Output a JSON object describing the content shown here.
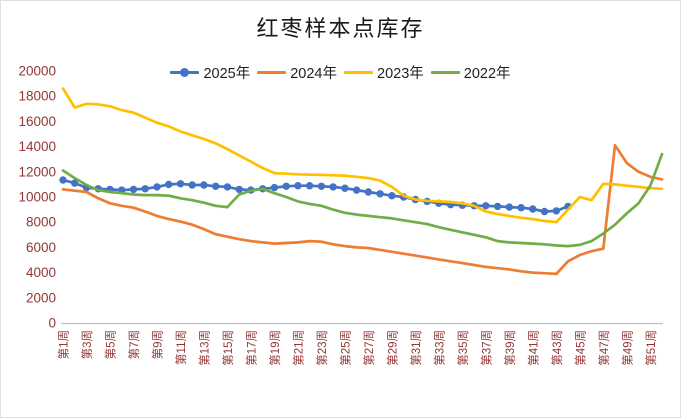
{
  "window": {
    "background": "#ffffff",
    "frame_border_color": "#e0e0e0",
    "axis_line_color": "#bfbfbf"
  },
  "chart_data": {
    "type": "line",
    "title": "红枣样本点库存",
    "legend_position": "top",
    "grid": false,
    "y_axis": {
      "min": 0,
      "max": 20000,
      "step": 2000,
      "tick_labels": [
        "0",
        "2000",
        "4000",
        "6000",
        "8000",
        "10000",
        "12000",
        "14000",
        "16000",
        "18000",
        "20000"
      ],
      "label_color": "#943634"
    },
    "x_axis": {
      "weeks": 52,
      "tick_labels": [
        "第1周",
        "第3周",
        "第5周",
        "第7周",
        "第9周",
        "第11周",
        "第13周",
        "第15周",
        "第17周",
        "第19周",
        "第21周",
        "第23周",
        "第25周",
        "第27周",
        "第29周",
        "第31周",
        "第33周",
        "第35周",
        "第37周",
        "第39周",
        "第41周",
        "第43周",
        "第45周",
        "第47周",
        "第49周",
        "第51周"
      ],
      "tick_step_weeks": 2,
      "tick_label_rotation_deg": -90,
      "label_color": "#943634"
    },
    "series": [
      {
        "name": "2025年",
        "color": "#4472C4",
        "marker": "circle",
        "values": [
          11350,
          11100,
          10750,
          10650,
          10600,
          10550,
          10600,
          10650,
          10800,
          11000,
          11050,
          10950,
          10950,
          10850,
          10800,
          10600,
          10550,
          10650,
          10750,
          10850,
          10900,
          10900,
          10850,
          10800,
          10700,
          10550,
          10400,
          10250,
          10100,
          10000,
          9800,
          9650,
          9500,
          9400,
          9350,
          9300,
          9300,
          9250,
          9200,
          9150,
          9050,
          8850,
          8900,
          9250,
          null,
          null,
          null,
          null,
          null,
          null,
          null,
          null
        ]
      },
      {
        "name": "2024年",
        "color": "#ED7D31",
        "marker": "none",
        "values": [
          10600,
          10500,
          10400,
          9900,
          9500,
          9300,
          9150,
          8850,
          8500,
          8250,
          8050,
          7800,
          7450,
          7050,
          6850,
          6650,
          6500,
          6400,
          6300,
          6350,
          6400,
          6500,
          6450,
          6250,
          6100,
          6000,
          5950,
          5800,
          5650,
          5500,
          5350,
          5200,
          5050,
          4900,
          4750,
          4600,
          4450,
          4350,
          4250,
          4100,
          4000,
          3950,
          3900,
          4900,
          5400,
          5700,
          5900,
          14100,
          12700,
          12000,
          11600,
          11400
        ]
      },
      {
        "name": "2023年",
        "color": "#FFC000",
        "marker": "none",
        "values": [
          18600,
          17100,
          17400,
          17350,
          17200,
          16900,
          16700,
          16300,
          15900,
          15600,
          15200,
          14900,
          14600,
          14250,
          13800,
          13300,
          12800,
          12300,
          11900,
          11850,
          11800,
          11780,
          11750,
          11720,
          11700,
          11600,
          11500,
          11300,
          10800,
          10100,
          9800,
          9700,
          9650,
          9600,
          9500,
          9300,
          8850,
          8650,
          8500,
          8350,
          8250,
          8100,
          8000,
          9000,
          10000,
          9750,
          11050,
          11000,
          10900,
          10800,
          10700,
          10650
        ]
      },
      {
        "name": "2022年",
        "color": "#70AD47",
        "marker": "none",
        "values": [
          12100,
          11500,
          10950,
          10550,
          10400,
          10300,
          10200,
          10150,
          10150,
          10100,
          9900,
          9750,
          9550,
          9300,
          9200,
          10200,
          10500,
          10650,
          10300,
          10000,
          9650,
          9450,
          9300,
          9000,
          8750,
          8600,
          8500,
          8400,
          8300,
          8150,
          8000,
          7850,
          7600,
          7400,
          7200,
          7000,
          6800,
          6500,
          6400,
          6350,
          6300,
          6250,
          6150,
          6100,
          6200,
          6500,
          7100,
          7800,
          8700,
          9500,
          10900,
          13400
        ]
      }
    ]
  }
}
